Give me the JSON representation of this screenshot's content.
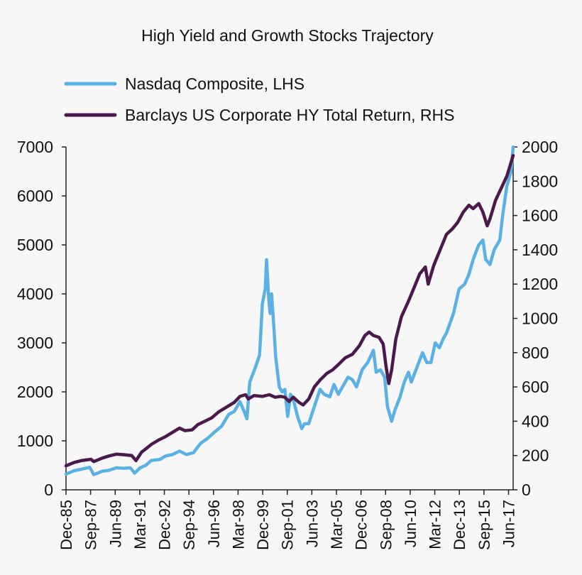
{
  "chart_data": {
    "type": "line",
    "title": "High Yield and Growth Stocks Trajectory",
    "x_tick_labels": [
      "Dec-85",
      "Sep-87",
      "Jun-89",
      "Mar-91",
      "Dec-92",
      "Sep-94",
      "Jun-96",
      "Mar-98",
      "Dec-99",
      "Sep-01",
      "Jun-03",
      "Mar-05",
      "Dec-06",
      "Sep-08",
      "Jun-10",
      "Mar-12",
      "Dec-13",
      "Sep-15",
      "Jun-17"
    ],
    "x_tick_dates": [
      1985.92,
      1987.67,
      1989.42,
      1991.17,
      1992.92,
      1994.67,
      1996.42,
      1998.17,
      1999.92,
      2001.67,
      2003.42,
      2005.17,
      2006.92,
      2008.67,
      2010.42,
      2012.17,
      2013.92,
      2015.67,
      2017.42
    ],
    "xlim": [
      1985.92,
      2017.75
    ],
    "y_left": {
      "ylim": [
        0,
        7000
      ],
      "ticks": [
        "0",
        "1000",
        "2000",
        "3000",
        "4000",
        "5000",
        "6000",
        "7000"
      ]
    },
    "y_right": {
      "ylim": [
        0,
        2000
      ],
      "ticks": [
        "0",
        "200",
        "400",
        "600",
        "800",
        "1000",
        "1200",
        "1400",
        "1600",
        "1800",
        "2000"
      ]
    },
    "legend_position": "top-left",
    "grid": false,
    "series": [
      {
        "name": "Nasdaq Composite, LHS",
        "axis": "left",
        "color": "#5bb1e3",
        "points": [
          [
            1985.92,
            320
          ],
          [
            1986.5,
            390
          ],
          [
            1987.0,
            420
          ],
          [
            1987.6,
            460
          ],
          [
            1987.9,
            310
          ],
          [
            1988.5,
            380
          ],
          [
            1989.0,
            400
          ],
          [
            1989.5,
            450
          ],
          [
            1990.0,
            440
          ],
          [
            1990.5,
            450
          ],
          [
            1990.8,
            340
          ],
          [
            1991.2,
            450
          ],
          [
            1991.6,
            500
          ],
          [
            1992.0,
            600
          ],
          [
            1992.6,
            620
          ],
          [
            1993.0,
            690
          ],
          [
            1993.5,
            720
          ],
          [
            1994.0,
            790
          ],
          [
            1994.5,
            720
          ],
          [
            1995.0,
            760
          ],
          [
            1995.5,
            950
          ],
          [
            1996.0,
            1050
          ],
          [
            1996.5,
            1180
          ],
          [
            1997.0,
            1300
          ],
          [
            1997.5,
            1540
          ],
          [
            1997.9,
            1600
          ],
          [
            1998.3,
            1800
          ],
          [
            1998.6,
            1600
          ],
          [
            1998.8,
            1450
          ],
          [
            1999.0,
            2200
          ],
          [
            1999.4,
            2500
          ],
          [
            1999.7,
            2750
          ],
          [
            1999.9,
            3800
          ],
          [
            2000.1,
            4100
          ],
          [
            2000.2,
            4700
          ],
          [
            2000.35,
            3900
          ],
          [
            2000.45,
            3600
          ],
          [
            2000.55,
            4000
          ],
          [
            2000.7,
            3400
          ],
          [
            2000.85,
            2700
          ],
          [
            2001.1,
            2100
          ],
          [
            2001.3,
            2000
          ],
          [
            2001.5,
            2050
          ],
          [
            2001.7,
            1500
          ],
          [
            2001.9,
            1950
          ],
          [
            2002.1,
            1850
          ],
          [
            2002.4,
            1500
          ],
          [
            2002.7,
            1250
          ],
          [
            2002.9,
            1350
          ],
          [
            2003.2,
            1350
          ],
          [
            2003.6,
            1700
          ],
          [
            2004.0,
            2050
          ],
          [
            2004.3,
            1950
          ],
          [
            2004.7,
            1900
          ],
          [
            2005.0,
            2150
          ],
          [
            2005.3,
            1950
          ],
          [
            2005.7,
            2150
          ],
          [
            2006.0,
            2300
          ],
          [
            2006.3,
            2250
          ],
          [
            2006.6,
            2100
          ],
          [
            2007.0,
            2450
          ],
          [
            2007.4,
            2600
          ],
          [
            2007.8,
            2850
          ],
          [
            2008.0,
            2400
          ],
          [
            2008.3,
            2450
          ],
          [
            2008.6,
            2300
          ],
          [
            2008.8,
            1700
          ],
          [
            2009.1,
            1400
          ],
          [
            2009.3,
            1600
          ],
          [
            2009.7,
            1900
          ],
          [
            2010.0,
            2200
          ],
          [
            2010.3,
            2400
          ],
          [
            2010.5,
            2200
          ],
          [
            2010.9,
            2500
          ],
          [
            2011.3,
            2800
          ],
          [
            2011.6,
            2600
          ],
          [
            2011.9,
            2600
          ],
          [
            2012.2,
            3000
          ],
          [
            2012.5,
            2900
          ],
          [
            2012.8,
            3100
          ],
          [
            2013.0,
            3200
          ],
          [
            2013.5,
            3600
          ],
          [
            2013.9,
            4100
          ],
          [
            2014.3,
            4200
          ],
          [
            2014.6,
            4400
          ],
          [
            2014.9,
            4700
          ],
          [
            2015.3,
            5000
          ],
          [
            2015.6,
            5100
          ],
          [
            2015.8,
            4700
          ],
          [
            2016.1,
            4600
          ],
          [
            2016.4,
            4900
          ],
          [
            2016.8,
            5100
          ],
          [
            2017.0,
            5600
          ],
          [
            2017.3,
            6200
          ],
          [
            2017.6,
            6500
          ],
          [
            2017.75,
            7000
          ]
        ]
      },
      {
        "name": "Barclays US Corporate HY Total Return, RHS",
        "axis": "right",
        "color": "#4a1a4a",
        "points": [
          [
            1985.92,
            140
          ],
          [
            1986.5,
            160
          ],
          [
            1987.0,
            170
          ],
          [
            1987.7,
            178
          ],
          [
            1987.9,
            165
          ],
          [
            1988.5,
            185
          ],
          [
            1989.0,
            198
          ],
          [
            1989.5,
            208
          ],
          [
            1990.0,
            205
          ],
          [
            1990.6,
            200
          ],
          [
            1990.9,
            170
          ],
          [
            1991.3,
            220
          ],
          [
            1991.7,
            245
          ],
          [
            1992.0,
            265
          ],
          [
            1992.5,
            290
          ],
          [
            1993.0,
            310
          ],
          [
            1993.5,
            335
          ],
          [
            1994.0,
            360
          ],
          [
            1994.4,
            345
          ],
          [
            1994.9,
            350
          ],
          [
            1995.3,
            380
          ],
          [
            1995.8,
            400
          ],
          [
            1996.3,
            420
          ],
          [
            1996.8,
            455
          ],
          [
            1997.3,
            480
          ],
          [
            1997.9,
            510
          ],
          [
            1998.3,
            545
          ],
          [
            1998.7,
            555
          ],
          [
            1998.9,
            530
          ],
          [
            1999.3,
            550
          ],
          [
            1999.9,
            545
          ],
          [
            2000.4,
            555
          ],
          [
            2000.8,
            540
          ],
          [
            2001.2,
            545
          ],
          [
            2001.5,
            540
          ],
          [
            2001.8,
            515
          ],
          [
            2002.1,
            540
          ],
          [
            2002.5,
            510
          ],
          [
            2002.8,
            495
          ],
          [
            2003.2,
            530
          ],
          [
            2003.6,
            600
          ],
          [
            2004.0,
            640
          ],
          [
            2004.5,
            680
          ],
          [
            2004.9,
            700
          ],
          [
            2005.3,
            730
          ],
          [
            2005.8,
            770
          ],
          [
            2006.3,
            790
          ],
          [
            2006.8,
            840
          ],
          [
            2007.2,
            900
          ],
          [
            2007.5,
            920
          ],
          [
            2007.8,
            900
          ],
          [
            2008.2,
            890
          ],
          [
            2008.5,
            850
          ],
          [
            2008.7,
            720
          ],
          [
            2008.9,
            620
          ],
          [
            2009.1,
            700
          ],
          [
            2009.4,
            880
          ],
          [
            2009.8,
            1010
          ],
          [
            2010.3,
            1100
          ],
          [
            2010.7,
            1180
          ],
          [
            2011.1,
            1260
          ],
          [
            2011.5,
            1300
          ],
          [
            2011.7,
            1200
          ],
          [
            2012.1,
            1310
          ],
          [
            2012.6,
            1410
          ],
          [
            2013.0,
            1490
          ],
          [
            2013.4,
            1520
          ],
          [
            2013.8,
            1560
          ],
          [
            2014.2,
            1620
          ],
          [
            2014.6,
            1660
          ],
          [
            2014.9,
            1640
          ],
          [
            2015.3,
            1670
          ],
          [
            2015.6,
            1620
          ],
          [
            2015.9,
            1540
          ],
          [
            2016.1,
            1580
          ],
          [
            2016.5,
            1690
          ],
          [
            2016.9,
            1760
          ],
          [
            2017.3,
            1830
          ],
          [
            2017.75,
            1950
          ]
        ]
      }
    ]
  }
}
